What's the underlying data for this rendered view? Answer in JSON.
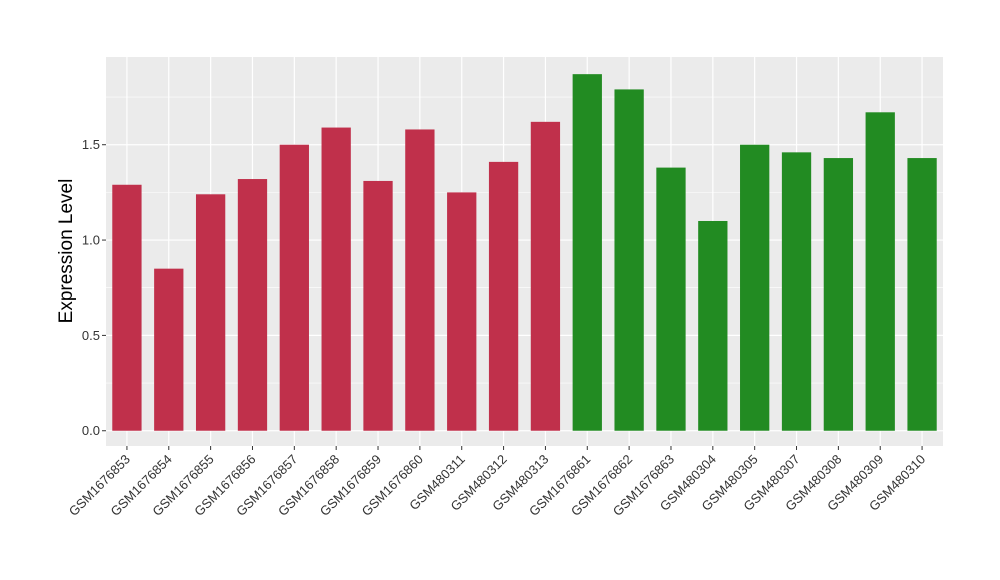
{
  "chart_data": {
    "type": "bar",
    "title": "",
    "xlabel": "",
    "ylabel": "Expression Level",
    "ylim": [
      -0.08,
      1.96
    ],
    "yticks": [
      0.0,
      0.5,
      1.0,
      1.5
    ],
    "ytick_labels": [
      "0.0",
      "0.5",
      "1.0",
      "1.5"
    ],
    "grid": true,
    "legend": "none",
    "panel_background": "#ebebeb",
    "grid_color": "#ffffff",
    "categories": [
      "GSM1676853",
      "GSM1676854",
      "GSM1676855",
      "GSM1676856",
      "GSM1676857",
      "GSM1676858",
      "GSM1676859",
      "GSM1676860",
      "GSM480311",
      "GSM480312",
      "GSM480313",
      "GSM1676861",
      "GSM1676862",
      "GSM1676863",
      "GSM480304",
      "GSM480305",
      "GSM480307",
      "GSM480308",
      "GSM480309",
      "GSM480310"
    ],
    "values": [
      1.29,
      0.85,
      1.24,
      1.32,
      1.5,
      1.59,
      1.31,
      1.58,
      1.25,
      1.41,
      1.62,
      1.87,
      1.79,
      1.38,
      1.1,
      1.5,
      1.46,
      1.43,
      1.67,
      1.43
    ],
    "bar_colors": [
      "#c0304b",
      "#c0304b",
      "#c0304b",
      "#c0304b",
      "#c0304b",
      "#c0304b",
      "#c0304b",
      "#c0304b",
      "#c0304b",
      "#c0304b",
      "#c0304b",
      "#228b22",
      "#228b22",
      "#228b22",
      "#228b22",
      "#228b22",
      "#228b22",
      "#228b22",
      "#228b22",
      "#228b22"
    ]
  }
}
